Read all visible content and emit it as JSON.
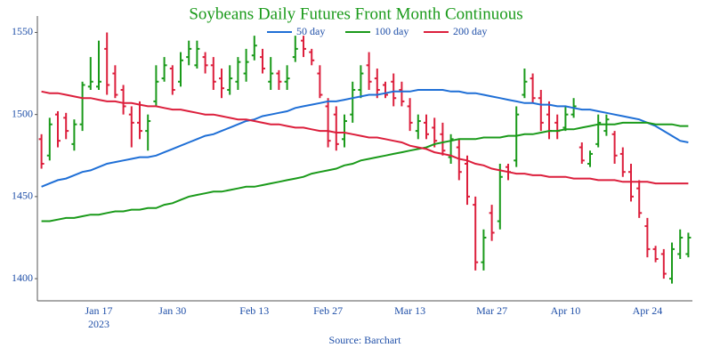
{
  "chart_data": {
    "type": "ohlc",
    "title": "Soybeans Daily Futures Front Month Continuous",
    "source": "Source: Barchart",
    "year_label": "2023",
    "up_color": "#1a9a1a",
    "down_color": "#dc1f3c",
    "ylim": [
      1386.5,
      1560
    ],
    "yticks": [
      1400,
      1450,
      1500,
      1550
    ],
    "categories": [
      null,
      null,
      null,
      null,
      null,
      null,
      null,
      "Jan 17",
      null,
      null,
      null,
      null,
      null,
      null,
      null,
      null,
      "Jan 30",
      null,
      null,
      null,
      null,
      null,
      null,
      null,
      null,
      null,
      "Feb 13",
      null,
      null,
      null,
      null,
      null,
      null,
      null,
      null,
      "Feb 27",
      null,
      null,
      null,
      null,
      null,
      null,
      null,
      null,
      null,
      "Mar 13",
      null,
      null,
      null,
      null,
      null,
      null,
      null,
      null,
      null,
      "Mar 27",
      null,
      null,
      null,
      null,
      null,
      null,
      null,
      null,
      "Apr 10",
      null,
      null,
      null,
      null,
      null,
      null,
      null,
      null,
      null,
      "Apr 24",
      null,
      null,
      null,
      null,
      null
    ],
    "ohlc": [
      [
        1485,
        1488,
        1467,
        1470
      ],
      [
        1475,
        1498,
        1472,
        1494
      ],
      [
        1500,
        1502,
        1480,
        1484
      ],
      [
        1498,
        1501,
        1485,
        1490
      ],
      [
        1482,
        1497,
        1478,
        1494
      ],
      [
        1494,
        1520,
        1490,
        1518
      ],
      [
        1517,
        1535,
        1515,
        1520
      ],
      [
        1517,
        1545,
        1515,
        1520
      ],
      [
        1540,
        1550,
        1512,
        1518
      ],
      [
        1525,
        1530,
        1510,
        1512
      ],
      [
        1515,
        1518,
        1500,
        1505
      ],
      [
        1500,
        1505,
        1480,
        1495
      ],
      [
        1495,
        1508,
        1485,
        1490
      ],
      [
        1490,
        1500,
        1478,
        1496
      ],
      [
        1508,
        1530,
        1505,
        1520
      ],
      [
        1522,
        1535,
        1520,
        1530
      ],
      [
        1528,
        1530,
        1512,
        1515
      ],
      [
        1520,
        1538,
        1517,
        1533
      ],
      [
        1535,
        1545,
        1530,
        1540
      ],
      [
        1530,
        1545,
        1528,
        1540
      ],
      [
        1535,
        1538,
        1525,
        1530
      ],
      [
        1530,
        1535,
        1515,
        1520
      ],
      [
        1522,
        1528,
        1510,
        1516
      ],
      [
        1515,
        1530,
        1512,
        1522
      ],
      [
        1520,
        1535,
        1515,
        1532
      ],
      [
        1525,
        1540,
        1520,
        1532
      ],
      [
        1536,
        1548,
        1533,
        1542
      ],
      [
        1535,
        1540,
        1525,
        1528
      ],
      [
        1520,
        1535,
        1515,
        1525
      ],
      [
        1525,
        1527,
        1515,
        1520
      ],
      [
        1520,
        1530,
        1515,
        1522
      ],
      [
        1535,
        1548,
        1532,
        1540
      ],
      [
        1545,
        1548,
        1535,
        1540
      ],
      [
        1538,
        1540,
        1530,
        1533
      ],
      [
        1525,
        1530,
        1510,
        1512
      ],
      [
        1505,
        1510,
        1480,
        1484
      ],
      [
        1500,
        1505,
        1478,
        1482
      ],
      [
        1485,
        1500,
        1480,
        1496
      ],
      [
        1500,
        1520,
        1495,
        1515
      ],
      [
        1515,
        1530,
        1510,
        1525
      ],
      [
        1530,
        1538,
        1515,
        1520
      ],
      [
        1522,
        1528,
        1510,
        1515
      ],
      [
        1518,
        1520,
        1510,
        1512
      ],
      [
        1520,
        1525,
        1505,
        1510
      ],
      [
        1515,
        1520,
        1505,
        1508
      ],
      [
        1505,
        1510,
        1490,
        1495
      ],
      [
        1490,
        1500,
        1485,
        1496
      ],
      [
        1495,
        1500,
        1485,
        1488
      ],
      [
        1492,
        1498,
        1480,
        1484
      ],
      [
        1488,
        1495,
        1475,
        1478
      ],
      [
        1474,
        1488,
        1470,
        1485
      ],
      [
        1480,
        1485,
        1460,
        1465
      ],
      [
        1470,
        1475,
        1445,
        1450
      ],
      [
        1445,
        1450,
        1405,
        1410
      ],
      [
        1410,
        1430,
        1405,
        1425
      ],
      [
        1440,
        1445,
        1423,
        1428
      ],
      [
        1435,
        1470,
        1430,
        1462
      ],
      [
        1468,
        1470,
        1460,
        1465
      ],
      [
        1472,
        1505,
        1468,
        1500
      ],
      [
        1512,
        1528,
        1510,
        1520
      ],
      [
        1522,
        1525,
        1507,
        1510
      ],
      [
        1510,
        1515,
        1490,
        1495
      ],
      [
        1500,
        1508,
        1485,
        1490
      ],
      [
        1495,
        1500,
        1485,
        1490
      ],
      [
        1492,
        1505,
        1490,
        1500
      ],
      [
        1500,
        1510,
        1498,
        1505
      ],
      [
        1480,
        1483,
        1470,
        1472
      ],
      [
        1470,
        1478,
        1468,
        1476
      ],
      [
        1482,
        1500,
        1480,
        1495
      ],
      [
        1490,
        1500,
        1487,
        1497
      ],
      [
        1488,
        1490,
        1470,
        1475
      ],
      [
        1476,
        1480,
        1462,
        1465
      ],
      [
        1465,
        1470,
        1447,
        1450
      ],
      [
        1455,
        1460,
        1437,
        1440
      ],
      [
        1432,
        1437,
        1413,
        1418
      ],
      [
        1418,
        1420,
        1410,
        1412
      ],
      [
        1415,
        1418,
        1400,
        1403
      ],
      [
        1400,
        1422,
        1397,
        1418
      ],
      [
        1415,
        1430,
        1412,
        1425
      ],
      [
        1415,
        1428,
        1413,
        1425
      ]
    ],
    "series": [
      {
        "name": "50 day",
        "color": "#1f6fd6",
        "values": [
          1456,
          1458,
          1460,
          1461,
          1463,
          1465,
          1466,
          1468,
          1470,
          1471,
          1472,
          1473,
          1474,
          1474,
          1475,
          1477,
          1479,
          1481,
          1483,
          1485,
          1487,
          1488,
          1490,
          1492,
          1494,
          1496,
          1497,
          1499,
          1500,
          1501,
          1502,
          1504,
          1505,
          1506,
          1507,
          1508,
          1508,
          1509,
          1510,
          1511,
          1512,
          1512,
          1513,
          1514,
          1514,
          1514,
          1515,
          1515,
          1515,
          1515,
          1514,
          1514,
          1513,
          1513,
          1512,
          1511,
          1510,
          1509,
          1508,
          1507,
          1507,
          1506,
          1506,
          1505,
          1505,
          1504,
          1503,
          1503,
          1502,
          1501,
          1500,
          1499,
          1498,
          1497,
          1495,
          1493,
          1490,
          1487,
          1484,
          1483
        ]
      },
      {
        "name": "100 day",
        "color": "#1a9a1a",
        "values": [
          1435,
          1435,
          1436,
          1437,
          1437,
          1438,
          1439,
          1439,
          1440,
          1441,
          1441,
          1442,
          1442,
          1443,
          1443,
          1445,
          1446,
          1448,
          1450,
          1451,
          1452,
          1453,
          1453,
          1454,
          1455,
          1456,
          1456,
          1457,
          1458,
          1459,
          1460,
          1461,
          1462,
          1464,
          1465,
          1466,
          1467,
          1469,
          1470,
          1472,
          1473,
          1474,
          1475,
          1476,
          1477,
          1478,
          1479,
          1480,
          1482,
          1483,
          1484,
          1485,
          1485,
          1485,
          1486,
          1486,
          1486,
          1487,
          1487,
          1488,
          1488,
          1489,
          1490,
          1490,
          1491,
          1491,
          1492,
          1493,
          1494,
          1494,
          1494,
          1495,
          1495,
          1495,
          1495,
          1494,
          1494,
          1494,
          1493,
          1493
        ]
      },
      {
        "name": "200 day",
        "color": "#dc1f3c",
        "values": [
          1514,
          1513,
          1513,
          1512,
          1511,
          1510,
          1510,
          1509,
          1508,
          1508,
          1507,
          1507,
          1506,
          1505,
          1505,
          1504,
          1503,
          1503,
          1502,
          1501,
          1500,
          1500,
          1499,
          1498,
          1497,
          1497,
          1496,
          1495,
          1494,
          1494,
          1493,
          1492,
          1492,
          1491,
          1490,
          1490,
          1489,
          1489,
          1488,
          1487,
          1486,
          1486,
          1485,
          1484,
          1483,
          1481,
          1480,
          1479,
          1477,
          1476,
          1475,
          1473,
          1472,
          1470,
          1469,
          1467,
          1466,
          1465,
          1464,
          1464,
          1463,
          1463,
          1462,
          1462,
          1462,
          1461,
          1461,
          1461,
          1460,
          1460,
          1460,
          1459,
          1459,
          1459,
          1459,
          1458,
          1458,
          1458,
          1458,
          1458
        ]
      }
    ]
  }
}
